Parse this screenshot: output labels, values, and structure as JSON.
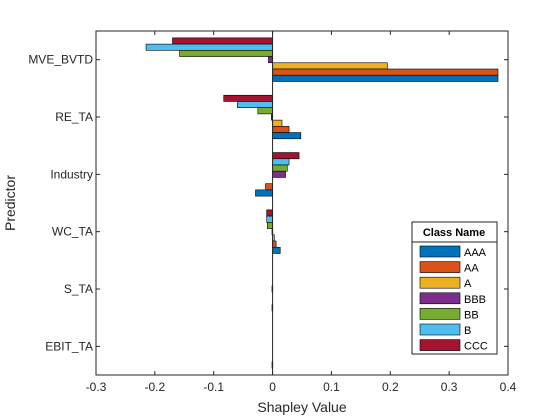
{
  "chart_data": {
    "type": "bar",
    "orientation": "horizontal",
    "title": "",
    "xlabel": "Shapley Value",
    "ylabel": "Predictor",
    "xlim": [
      -0.3,
      0.4
    ],
    "xticks": [
      -0.3,
      -0.2,
      -0.1,
      0,
      0.1,
      0.2,
      0.3,
      0.4
    ],
    "xtick_labels": [
      "-0.3",
      "-0.2",
      "-0.1",
      "0",
      "0.1",
      "0.2",
      "0.3",
      "0.4"
    ],
    "grid": false,
    "legend_title": "Class Name",
    "legend_position": "bottom-right",
    "categories": [
      "MVE_BVTD",
      "RE_TA",
      "Industry",
      "WC_TA",
      "S_TA",
      "EBIT_TA"
    ],
    "series": [
      {
        "name": "AAA",
        "color": "#0072BD",
        "values": [
          0.383,
          0.048,
          -0.029,
          0.013,
          -0.001,
          -0.001
        ]
      },
      {
        "name": "AA",
        "color": "#D95319",
        "values": [
          0.383,
          0.028,
          -0.012,
          0.006,
          0.0,
          0.0
        ]
      },
      {
        "name": "A",
        "color": "#EDB120",
        "values": [
          0.195,
          0.016,
          0.0,
          0.003,
          0.0,
          0.0
        ]
      },
      {
        "name": "BBB",
        "color": "#7E2F8E",
        "values": [
          -0.007,
          -0.002,
          0.022,
          -0.001,
          -0.001,
          0.0
        ]
      },
      {
        "name": "BB",
        "color": "#77AC30",
        "values": [
          -0.158,
          -0.025,
          0.025,
          -0.009,
          0.0,
          0.0
        ]
      },
      {
        "name": "B",
        "color": "#4DBEEE",
        "values": [
          -0.215,
          -0.06,
          0.028,
          -0.01,
          0.0,
          0.0
        ]
      },
      {
        "name": "CCC",
        "color": "#A2142F",
        "values": [
          -0.17,
          -0.083,
          0.045,
          -0.01,
          0.0,
          0.0
        ]
      }
    ]
  }
}
